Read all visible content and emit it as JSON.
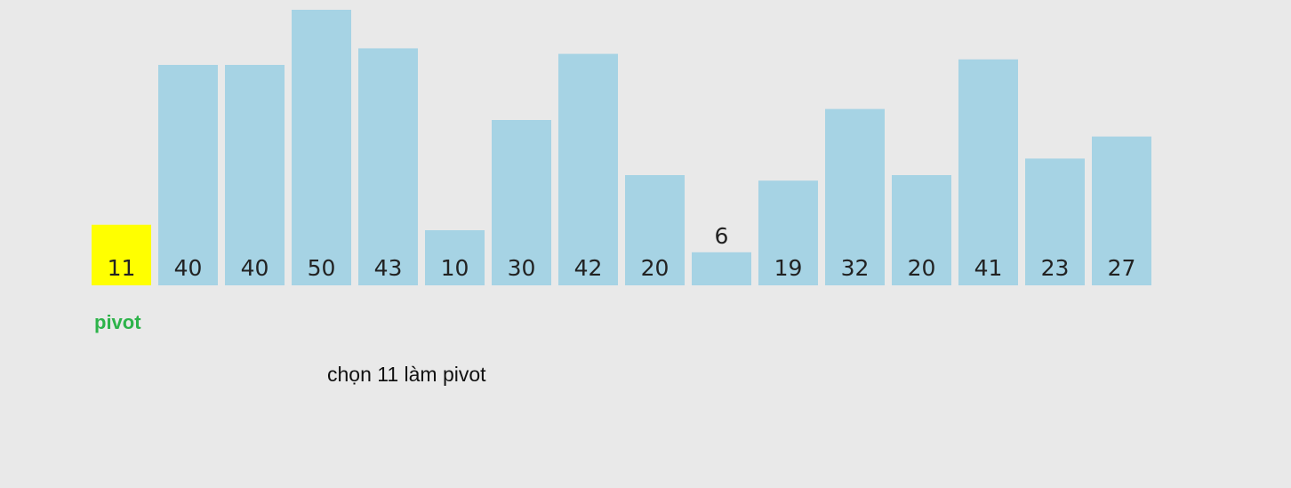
{
  "chart_data": {
    "type": "bar",
    "values": [
      11,
      40,
      40,
      50,
      43,
      10,
      30,
      42,
      20,
      6,
      19,
      32,
      20,
      41,
      23,
      27
    ],
    "pivot_index": 0,
    "pivot_label": "pivot",
    "caption": "chọn 11 làm pivot",
    "grid": false,
    "colors": {
      "bar": "#a6d3e4",
      "pivot_bar": "#ffff00",
      "background": "#e9e9e9",
      "pivot_label": "#2db34a",
      "label": "#222222"
    }
  }
}
